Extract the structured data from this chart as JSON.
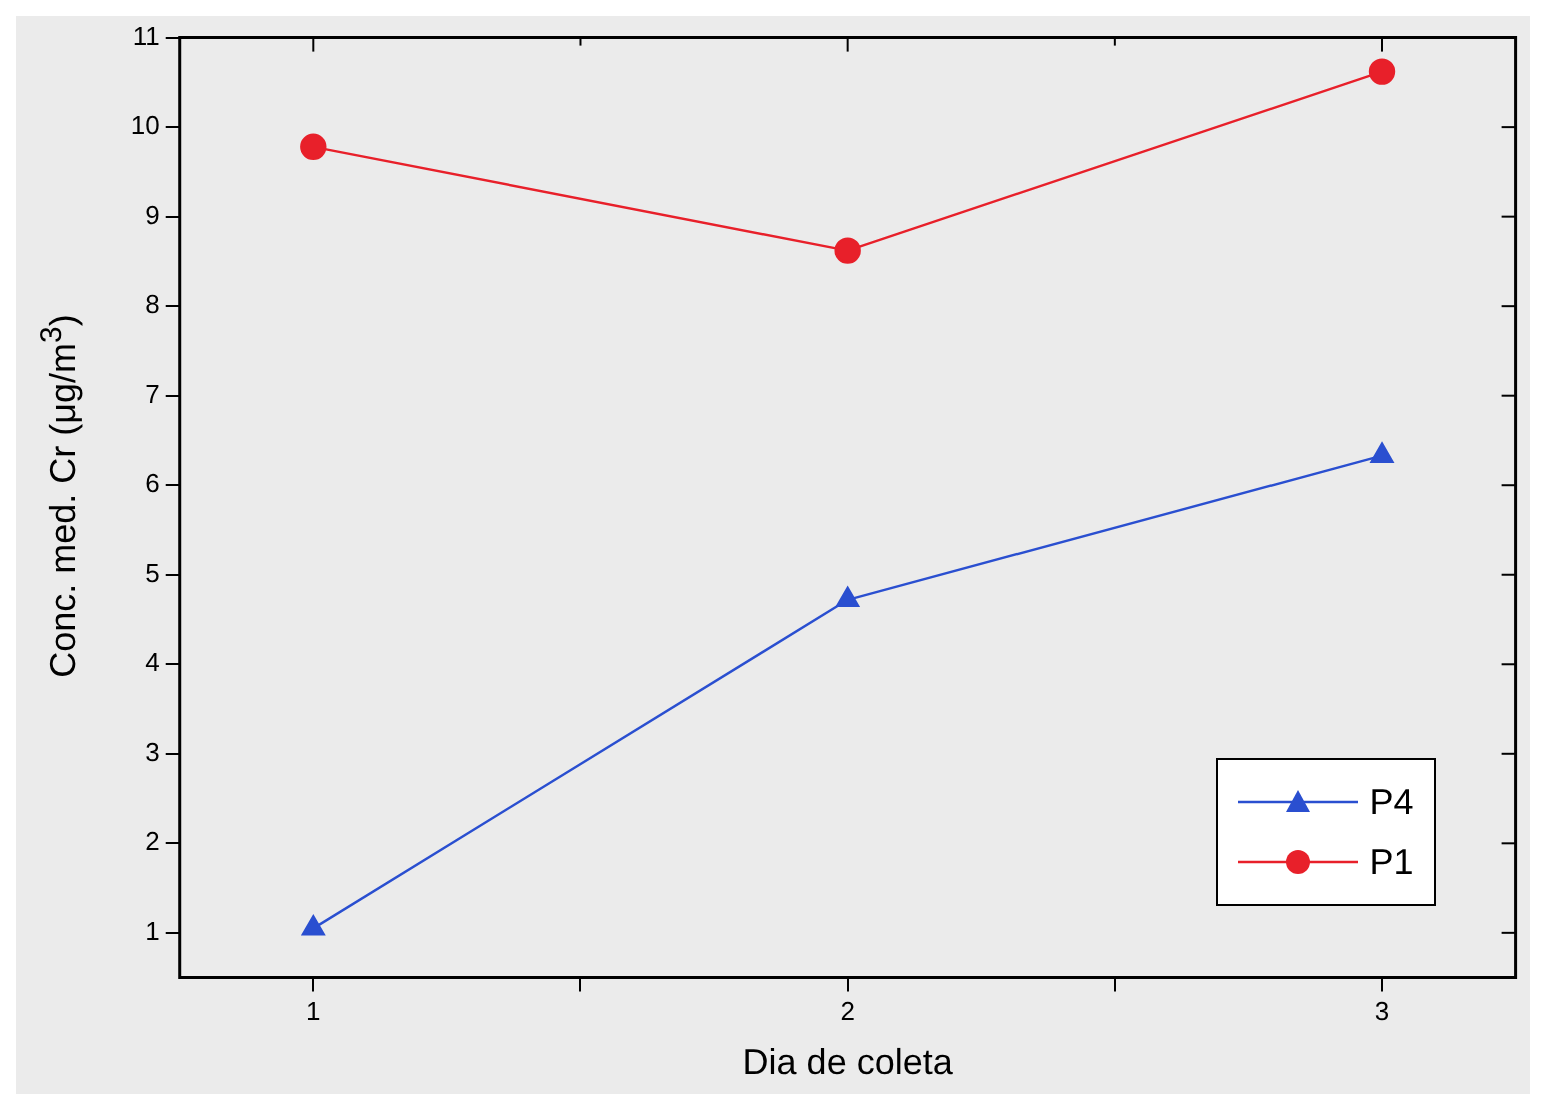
{
  "chart_data": {
    "type": "line",
    "xlabel": "Dia de coleta",
    "ylabel": "Conc. med. Cr (μg/m$^{3}$)",
    "x": [
      1,
      2,
      3
    ],
    "series": [
      {
        "name": "P4",
        "color": "#2a4fd0",
        "marker": "triangle",
        "values": [
          1.05,
          4.72,
          6.33
        ]
      },
      {
        "name": "P1",
        "color": "#e8202a",
        "marker": "circle",
        "values": [
          9.78,
          8.62,
          10.62
        ]
      }
    ],
    "xlim": [
      0.75,
      3.25
    ],
    "xticks": [
      1,
      {
        "value": 1.5,
        "label": null
      },
      2,
      {
        "value": 2.5,
        "label": null
      },
      3
    ],
    "ylim": [
      0.5,
      11
    ],
    "yticks": [
      1,
      2,
      3,
      4,
      5,
      6,
      7,
      8,
      9,
      10,
      11
    ],
    "grid": false,
    "legend": "bottom right",
    "line_style": "solid"
  }
}
